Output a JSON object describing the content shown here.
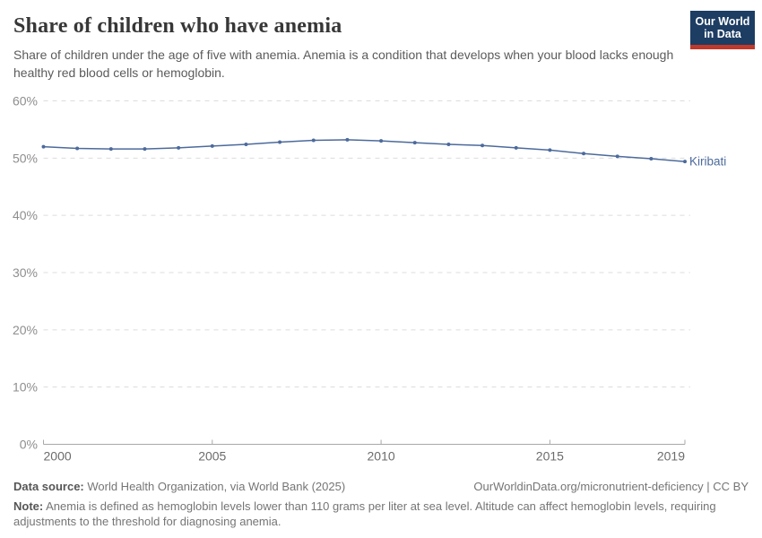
{
  "header": {
    "title": "Share of children who have anemia",
    "subtitle": "Share of children under the age of five with anemia. Anemia is a condition that develops when your blood lacks enough healthy red blood cells or hemoglobin.",
    "logo": {
      "line1": "Our World",
      "line2": "in Data"
    }
  },
  "chart_data": {
    "type": "line",
    "title": "Share of children who have anemia",
    "x": [
      2000,
      2001,
      2002,
      2003,
      2004,
      2005,
      2006,
      2007,
      2008,
      2009,
      2010,
      2011,
      2012,
      2013,
      2014,
      2015,
      2016,
      2017,
      2018,
      2019
    ],
    "series": [
      {
        "name": "Kiribati",
        "color": "#4c6a9c",
        "values": [
          52.0,
          51.7,
          51.6,
          51.6,
          51.8,
          52.1,
          52.4,
          52.8,
          53.1,
          53.2,
          53.0,
          52.7,
          52.4,
          52.2,
          51.8,
          51.4,
          50.8,
          50.3,
          49.9,
          49.4
        ]
      }
    ],
    "xlabel": "",
    "ylabel": "",
    "xlim": [
      2000,
      2019
    ],
    "ylim": [
      0,
      60
    ],
    "yticks": [
      0,
      10,
      20,
      30,
      40,
      50,
      60
    ],
    "ytick_labels": [
      "0%",
      "10%",
      "20%",
      "30%",
      "40%",
      "50%",
      "60%"
    ],
    "xticks": [
      2000,
      2005,
      2010,
      2015,
      2019
    ],
    "xtick_labels": [
      "2000",
      "2005",
      "2010",
      "2015",
      "2019"
    ],
    "grid": "horizontal-dashed",
    "legend_position": "end-of-line-label",
    "end_label": "Kiribati"
  },
  "footer": {
    "datasource_label": "Data source:",
    "datasource_text": " World Health Organization, via World Bank (2025)",
    "attribution": "OurWorldinData.org/micronutrient-deficiency | CC BY",
    "note_label": "Note:",
    "note_text": " Anemia is defined as hemoglobin levels lower than 110 grams per liter at sea level. Altitude can affect hemoglobin levels, requiring adjustments to the threshold for diagnosing anemia."
  },
  "colors": {
    "line": "#4c6a9c",
    "grid": "#dcdcdc",
    "axis": "#a8a8a8",
    "ytick_text": "#8e8e8e",
    "xtick_text": "#6c6c6c",
    "logo_bg": "#1d3d63",
    "logo_stripe": "#c0392b"
  }
}
